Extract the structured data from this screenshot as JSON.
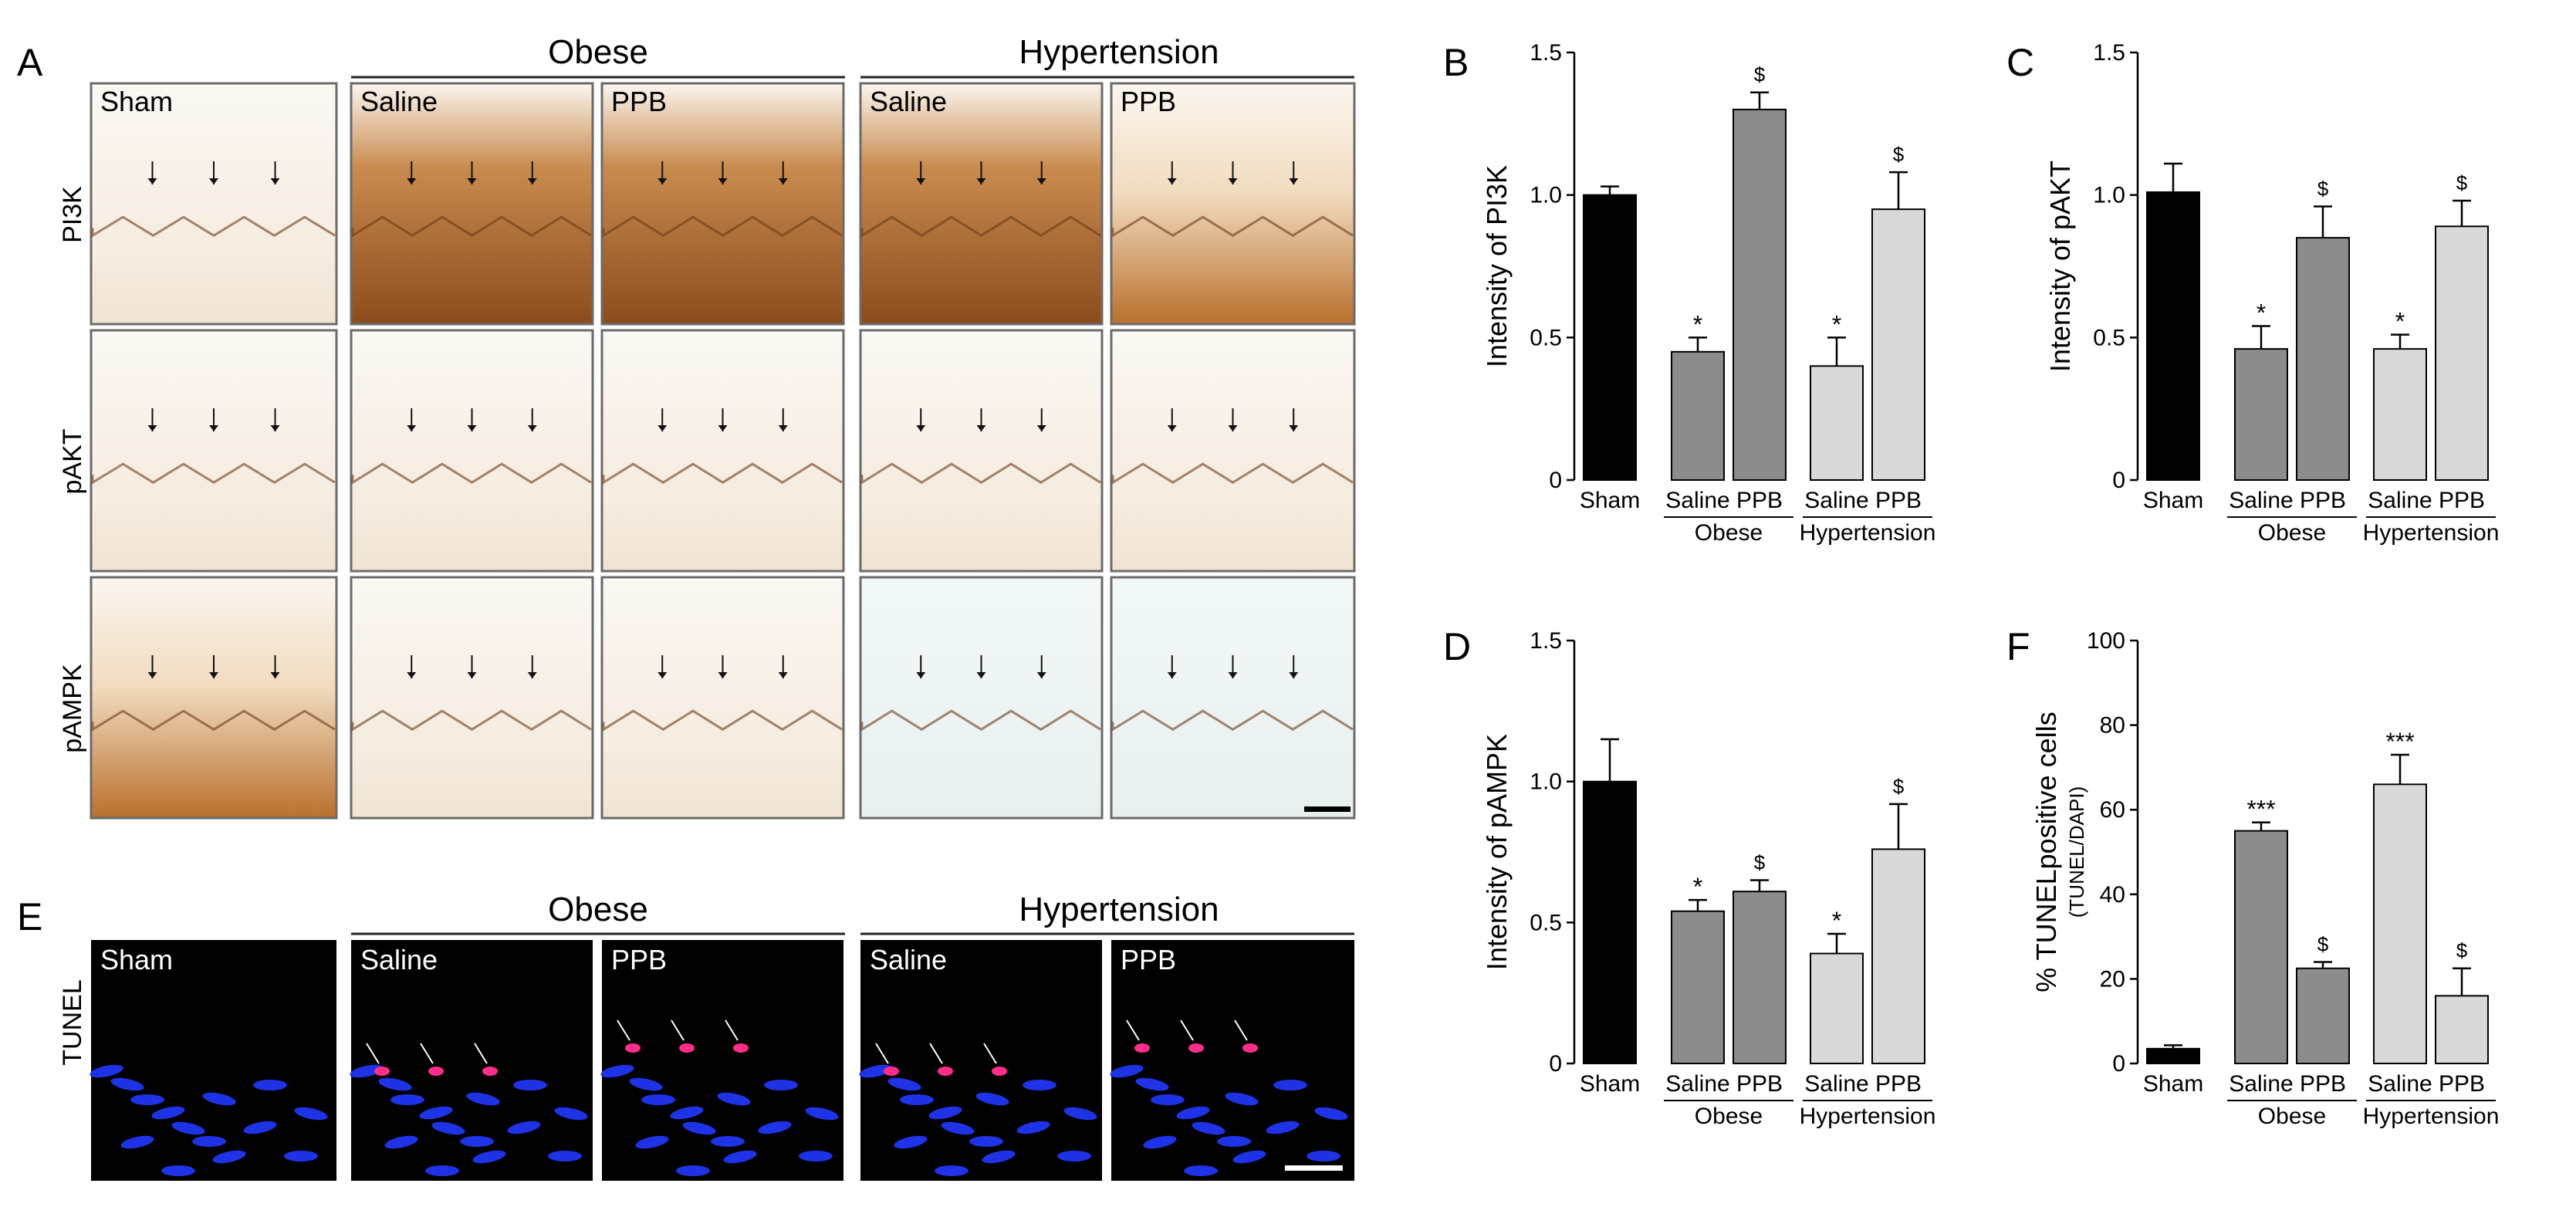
{
  "panel_letters": {
    "A": "A",
    "B": "B",
    "C": "C",
    "D": "D",
    "E": "E",
    "F": "F"
  },
  "micrograph": {
    "groups": {
      "obese": "Obese",
      "hypertension": "Hypertension"
    },
    "columns": [
      "Sham",
      "Saline",
      "PPB",
      "Saline",
      "PPB"
    ],
    "rows": [
      "PI3K",
      "pAKT",
      "pAMPK"
    ],
    "tunel_row": "TUNEL",
    "stain_colors": {
      "background": "#fbf6ef",
      "brown": "#b9702d",
      "dark": "#6a3a16",
      "blue": "#1f33e6",
      "nuclei_red": "#ff2e8a"
    }
  },
  "colors": {
    "sham": "#000000",
    "obese": "#8c8c8c",
    "hypertension": "#d9d9d9"
  },
  "chart_data": [
    {
      "panel": "B",
      "type": "bar",
      "categories": [
        "Sham",
        "Saline",
        "PPB",
        "Saline",
        "PPB"
      ],
      "groups": [
        "Obese",
        "Hypertension"
      ],
      "values": [
        1.0,
        0.45,
        1.3,
        0.4,
        0.95
      ],
      "errors": [
        0.03,
        0.05,
        0.06,
        0.1,
        0.13
      ],
      "annotations": [
        "",
        "*",
        "$",
        "*",
        "$"
      ],
      "ylabel": "Intensity of PI3K",
      "ylim": [
        0,
        1.5
      ],
      "yticks": [
        "0",
        "0.5",
        "1.0",
        "1.5"
      ]
    },
    {
      "panel": "C",
      "type": "bar",
      "categories": [
        "Sham",
        "Saline",
        "PPB",
        "Saline",
        "PPB"
      ],
      "groups": [
        "Obese",
        "Hypertension"
      ],
      "values": [
        1.01,
        0.46,
        0.85,
        0.46,
        0.89
      ],
      "errors": [
        0.1,
        0.08,
        0.11,
        0.05,
        0.09
      ],
      "annotations": [
        "",
        "*",
        "$",
        "*",
        "$"
      ],
      "ylabel": "Intensity of pAKT",
      "ylim": [
        0,
        1.5
      ],
      "yticks": [
        "0",
        "0.5",
        "1.0",
        "1.5"
      ]
    },
    {
      "panel": "D",
      "type": "bar",
      "categories": [
        "Sham",
        "Saline",
        "PPB",
        "Saline",
        "PPB"
      ],
      "groups": [
        "Obese",
        "Hypertension"
      ],
      "values": [
        1.0,
        0.54,
        0.61,
        0.39,
        0.76
      ],
      "errors": [
        0.15,
        0.04,
        0.04,
        0.07,
        0.16
      ],
      "annotations": [
        "",
        "*",
        "$",
        "*",
        "$"
      ],
      "ylabel": "Intensity of pAMPK",
      "ylim": [
        0,
        1.5
      ],
      "yticks": [
        "0",
        "0.5",
        "1.0",
        "1.5"
      ]
    },
    {
      "panel": "F",
      "type": "bar",
      "categories": [
        "Sham",
        "Saline",
        "PPB",
        "Saline",
        "PPB"
      ],
      "groups": [
        "Obese",
        "Hypertension"
      ],
      "values": [
        3.5,
        55,
        22.5,
        66,
        16
      ],
      "errors": [
        0.8,
        2,
        1.5,
        7,
        6.5
      ],
      "annotations": [
        "",
        "***",
        "$",
        "***",
        "$"
      ],
      "ylabel": "% TUNELpositive cells",
      "ylabel2": "(TUNEL/DAPI)",
      "ylim": [
        0,
        100
      ],
      "yticks": [
        "0",
        "20",
        "40",
        "60",
        "80",
        "100"
      ]
    }
  ]
}
